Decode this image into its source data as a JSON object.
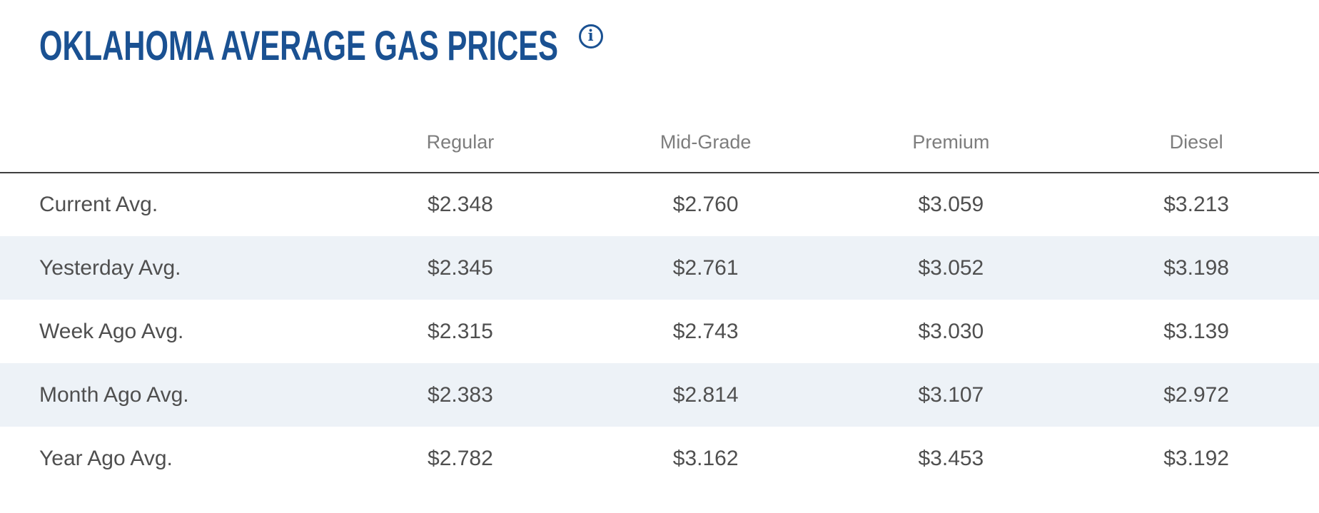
{
  "page": {
    "title": "OKLAHOMA AVERAGE GAS PRICES",
    "info_icon_glyph": "i"
  },
  "colors": {
    "brand-blue": "#1a5192",
    "header-gray": "#7d7d7d",
    "cell-gray": "#4f4f4f",
    "alt-row-bg": "#edf2f7",
    "divider": "#3f3f3f"
  },
  "table": {
    "headers": [
      "Regular",
      "Mid-Grade",
      "Premium",
      "Diesel"
    ],
    "rows": [
      {
        "label": "Current Avg.",
        "values": [
          "$2.348",
          "$2.760",
          "$3.059",
          "$3.213"
        ]
      },
      {
        "label": "Yesterday Avg.",
        "values": [
          "$2.345",
          "$2.761",
          "$3.052",
          "$3.198"
        ]
      },
      {
        "label": "Week Ago Avg.",
        "values": [
          "$2.315",
          "$2.743",
          "$3.030",
          "$3.139"
        ]
      },
      {
        "label": "Month Ago Avg.",
        "values": [
          "$2.383",
          "$2.814",
          "$3.107",
          "$2.972"
        ]
      },
      {
        "label": "Year Ago Avg.",
        "values": [
          "$2.782",
          "$3.162",
          "$3.453",
          "$3.192"
        ]
      }
    ]
  }
}
